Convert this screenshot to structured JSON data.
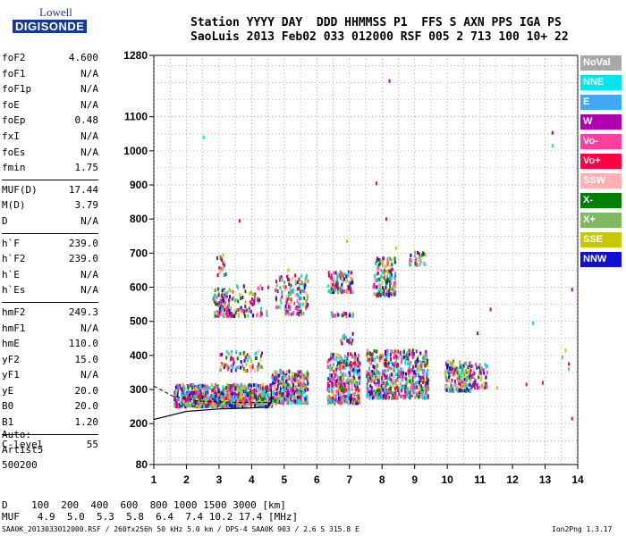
{
  "logo": {
    "line1": "Lowell",
    "line2": "DIGISONDE"
  },
  "header": {
    "row1": "Station YYYY DAY  DDD HHMMSS P1  FFS S AXN PPS IGA PS",
    "row2": "SaoLuis 2013 Feb02 033 012000 RSF 005 2 713 100 10+ 22"
  },
  "params": {
    "group1": [
      {
        "k": "foF2",
        "v": "4.600"
      },
      {
        "k": "foF1",
        "v": "N/A"
      },
      {
        "k": "foF1p",
        "v": "N/A"
      },
      {
        "k": "foE",
        "v": "N/A"
      },
      {
        "k": "foEp",
        "v": "0.48"
      },
      {
        "k": "fxI",
        "v": "N/A"
      },
      {
        "k": "foEs",
        "v": "N/A"
      },
      {
        "k": "fmin",
        "v": "1.75"
      }
    ],
    "group2": [
      {
        "k": "MUF(D)",
        "v": "17.44"
      },
      {
        "k": "M(D)",
        "v": "3.79"
      },
      {
        "k": "D",
        "v": "N/A"
      }
    ],
    "group3": [
      {
        "k": "h`F",
        "v": "239.0"
      },
      {
        "k": "h`F2",
        "v": "239.0"
      },
      {
        "k": "h`E",
        "v": "N/A"
      },
      {
        "k": "h`Es",
        "v": "N/A"
      }
    ],
    "group4": [
      {
        "k": "hmF2",
        "v": "249.3"
      },
      {
        "k": "hmF1",
        "v": "N/A"
      },
      {
        "k": "hmE",
        "v": "110.0"
      },
      {
        "k": "yF2",
        "v": "15.0"
      },
      {
        "k": "yF1",
        "v": "N/A"
      },
      {
        "k": "yE",
        "v": "20.0"
      },
      {
        "k": "B0",
        "v": "20.0"
      },
      {
        "k": "B1",
        "v": "1.20"
      }
    ],
    "group5": [
      {
        "k": "C-level",
        "v": "55"
      }
    ]
  },
  "misc": {
    "auto": "Auto:",
    "artist": "Artist5",
    "code": "500200"
  },
  "legend": [
    {
      "label": "NoVal",
      "color": "#a8a8a8"
    },
    {
      "label": "NNE",
      "color": "#00e5ee"
    },
    {
      "label": "E",
      "color": "#3fa9f5"
    },
    {
      "label": "W",
      "color": "#b000b0"
    },
    {
      "label": "Vo-",
      "color": "#ff3fa0"
    },
    {
      "label": "Vo+",
      "color": "#ff0044"
    },
    {
      "label": "SSW",
      "color": "#ffb0b0"
    },
    {
      "label": "X-",
      "color": "#008000"
    },
    {
      "label": "X+",
      "color": "#80b860"
    },
    {
      "label": "SSE",
      "color": "#c8c800"
    },
    {
      "label": "NNW",
      "color": "#1010d0"
    }
  ],
  "footer": {
    "row_d": "D    100  200  400  600  800 1000 1500 3000 [km]",
    "row_muf": "MUF   4.9  5.0  5.3  5.8  6.4  7.4 10.2 17.4 [MHz]",
    "left": "SAA0K_2013033012000.RSF / 260fx256h 50 kHz 5.0 km / DPS-4 SAA0K 903 / 2.6 S 315.8 E",
    "right": "Ion2Png 1.3.17"
  },
  "chart_data": {
    "type": "scatter",
    "xlabel": "",
    "ylabel": "",
    "x_ticks": [
      1,
      2,
      3,
      4,
      5,
      6,
      7,
      8,
      9,
      10,
      11,
      12,
      13,
      14
    ],
    "y_ticks": [
      80,
      200,
      300,
      400,
      500,
      600,
      700,
      800,
      900,
      1000,
      1100,
      1280
    ],
    "xlim": [
      1,
      14
    ],
    "ylim": [
      80,
      1280
    ],
    "grid": true,
    "series": [
      {
        "name": "NNE",
        "color": "#00e5ee",
        "points": [
          [
            2.5,
            1045
          ],
          [
            13.2,
            1020
          ],
          [
            12.6,
            500
          ]
        ]
      },
      {
        "name": "W",
        "color": "#b000b0",
        "points": [
          [
            3.6,
            800
          ],
          [
            8.2,
            1210
          ],
          [
            13.2,
            1058
          ],
          [
            11.3,
            540
          ],
          [
            10.9,
            470
          ],
          [
            13.8,
            598
          ]
        ]
      },
      {
        "name": "Vo+",
        "color": "#ff0044",
        "points": [
          [
            7.8,
            910
          ],
          [
            8.1,
            805
          ],
          [
            12.9,
            325
          ],
          [
            12.4,
            320
          ],
          [
            13.7,
            380
          ],
          [
            13.8,
            220
          ]
        ]
      },
      {
        "name": "SSE",
        "color": "#c8c800",
        "points": [
          [
            3.1,
            700
          ],
          [
            5.1,
            655
          ],
          [
            6.9,
            740
          ],
          [
            8.4,
            720
          ],
          [
            9.3,
            700
          ],
          [
            10.3,
            345
          ],
          [
            11.5,
            310
          ],
          [
            13.6,
            420
          ]
        ]
      },
      {
        "name": "X+",
        "color": "#80b860",
        "points": [
          [
            13.5,
            400
          ],
          [
            13.7,
            365
          ]
        ]
      }
    ],
    "trace_curve": [
      [
        1,
        212
      ],
      [
        2,
        236
      ],
      [
        3,
        243
      ],
      [
        4,
        246
      ],
      [
        4.5,
        249
      ],
      [
        4.6,
        262
      ],
      [
        4.6,
        300
      ]
    ],
    "trace_dash": [
      [
        1,
        310
      ],
      [
        1.6,
        280
      ],
      [
        2.4,
        266
      ],
      [
        3.6,
        262
      ],
      [
        4.5,
        262
      ],
      [
        4.6,
        280
      ]
    ]
  }
}
